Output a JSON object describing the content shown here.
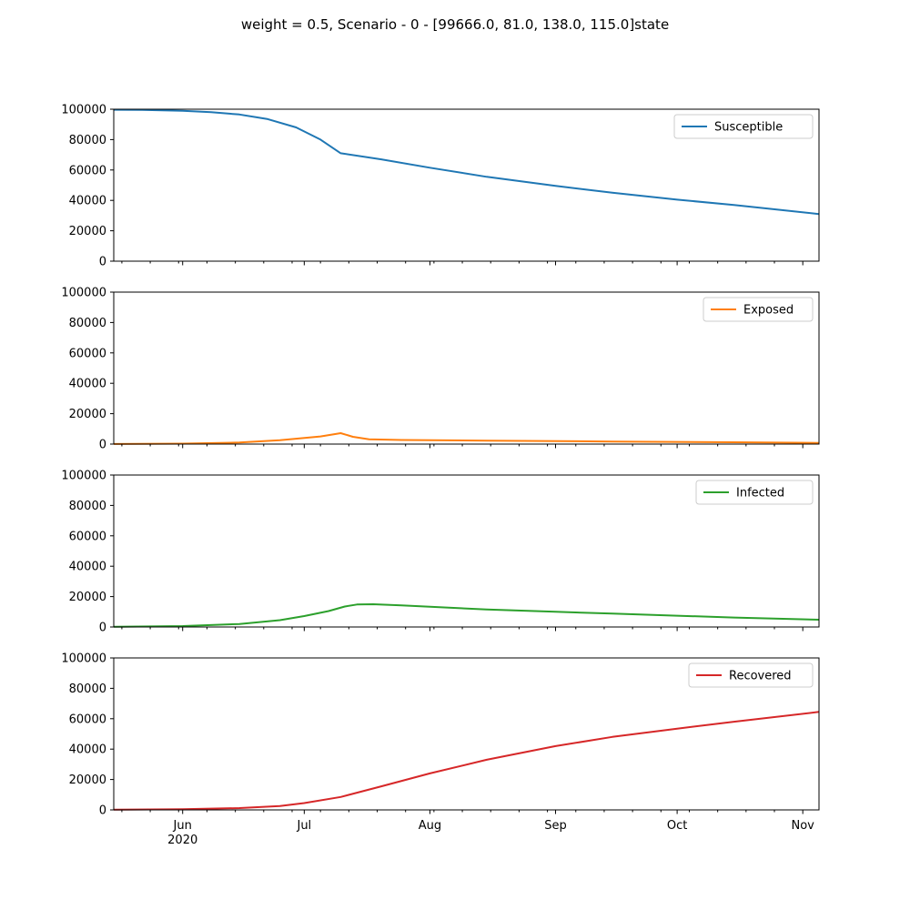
{
  "figure": {
    "title": "weight = 0.5, Scenario - 0 - [99666.0, 81.0, 138.0, 115.0]state"
  },
  "chart_data": {
    "type": "line",
    "layout": "4 stacked subplots, shared x-axis",
    "xaxis": {
      "type": "date",
      "range": [
        "2020-05-15",
        "2020-11-05"
      ],
      "major_ticks": [
        {
          "date": "2020-06-01",
          "label": "Jun",
          "sublabel": "2020"
        },
        {
          "date": "2020-07-01",
          "label": "Jul"
        },
        {
          "date": "2020-08-01",
          "label": "Aug"
        },
        {
          "date": "2020-09-01",
          "label": "Sep"
        },
        {
          "date": "2020-10-01",
          "label": "Oct"
        },
        {
          "date": "2020-11-01",
          "label": "Nov"
        }
      ]
    },
    "yaxis": {
      "range": [
        0,
        100000
      ],
      "ticks": [
        0,
        20000,
        40000,
        60000,
        80000,
        100000
      ],
      "tick_labels": [
        "0",
        "20000",
        "40000",
        "60000",
        "80000",
        "100000"
      ]
    },
    "grid": false,
    "legend_placement": "upper right",
    "subplots": [
      {
        "name": "Susceptible",
        "color": "#1f77b4",
        "x": [
          "2020-05-15",
          "2020-05-22",
          "2020-06-01",
          "2020-06-08",
          "2020-06-15",
          "2020-06-22",
          "2020-06-29",
          "2020-07-05",
          "2020-07-10",
          "2020-07-20",
          "2020-08-01",
          "2020-08-15",
          "2020-09-01",
          "2020-09-15",
          "2020-10-01",
          "2020-10-15",
          "2020-11-05"
        ],
        "y": [
          99666,
          99600,
          99000,
          98000,
          96500,
          93500,
          88000,
          80000,
          71000,
          67000,
          61500,
          55500,
          49500,
          45000,
          40500,
          37000,
          31000
        ]
      },
      {
        "name": "Exposed",
        "color": "#ff7f0e",
        "x": [
          "2020-05-15",
          "2020-06-01",
          "2020-06-15",
          "2020-06-25",
          "2020-07-05",
          "2020-07-10",
          "2020-07-13",
          "2020-07-17",
          "2020-07-25",
          "2020-08-15",
          "2020-09-15",
          "2020-10-15",
          "2020-11-05"
        ],
        "y": [
          81,
          300,
          1000,
          2500,
          5000,
          7200,
          4800,
          3200,
          2700,
          2300,
          1700,
          1200,
          800
        ]
      },
      {
        "name": "Infected",
        "color": "#2ca02c",
        "x": [
          "2020-05-15",
          "2020-06-01",
          "2020-06-15",
          "2020-06-25",
          "2020-07-01",
          "2020-07-07",
          "2020-07-11",
          "2020-07-14",
          "2020-07-18",
          "2020-07-25",
          "2020-08-15",
          "2020-09-01",
          "2020-09-15",
          "2020-10-01",
          "2020-10-15",
          "2020-11-05"
        ],
        "y": [
          138,
          600,
          2000,
          4500,
          7200,
          10500,
          13500,
          14800,
          15000,
          14200,
          11500,
          10000,
          8800,
          7400,
          6200,
          4800
        ]
      },
      {
        "name": "Recovered",
        "color": "#d62728",
        "x": [
          "2020-05-15",
          "2020-06-01",
          "2020-06-15",
          "2020-06-25",
          "2020-07-01",
          "2020-07-10",
          "2020-07-20",
          "2020-08-01",
          "2020-08-15",
          "2020-09-01",
          "2020-09-15",
          "2020-10-01",
          "2020-10-15",
          "2020-11-05"
        ],
        "y": [
          115,
          400,
          1200,
          2600,
          4500,
          8500,
          15500,
          24000,
          33000,
          42000,
          48000,
          53500,
          58000,
          64500
        ]
      }
    ]
  }
}
